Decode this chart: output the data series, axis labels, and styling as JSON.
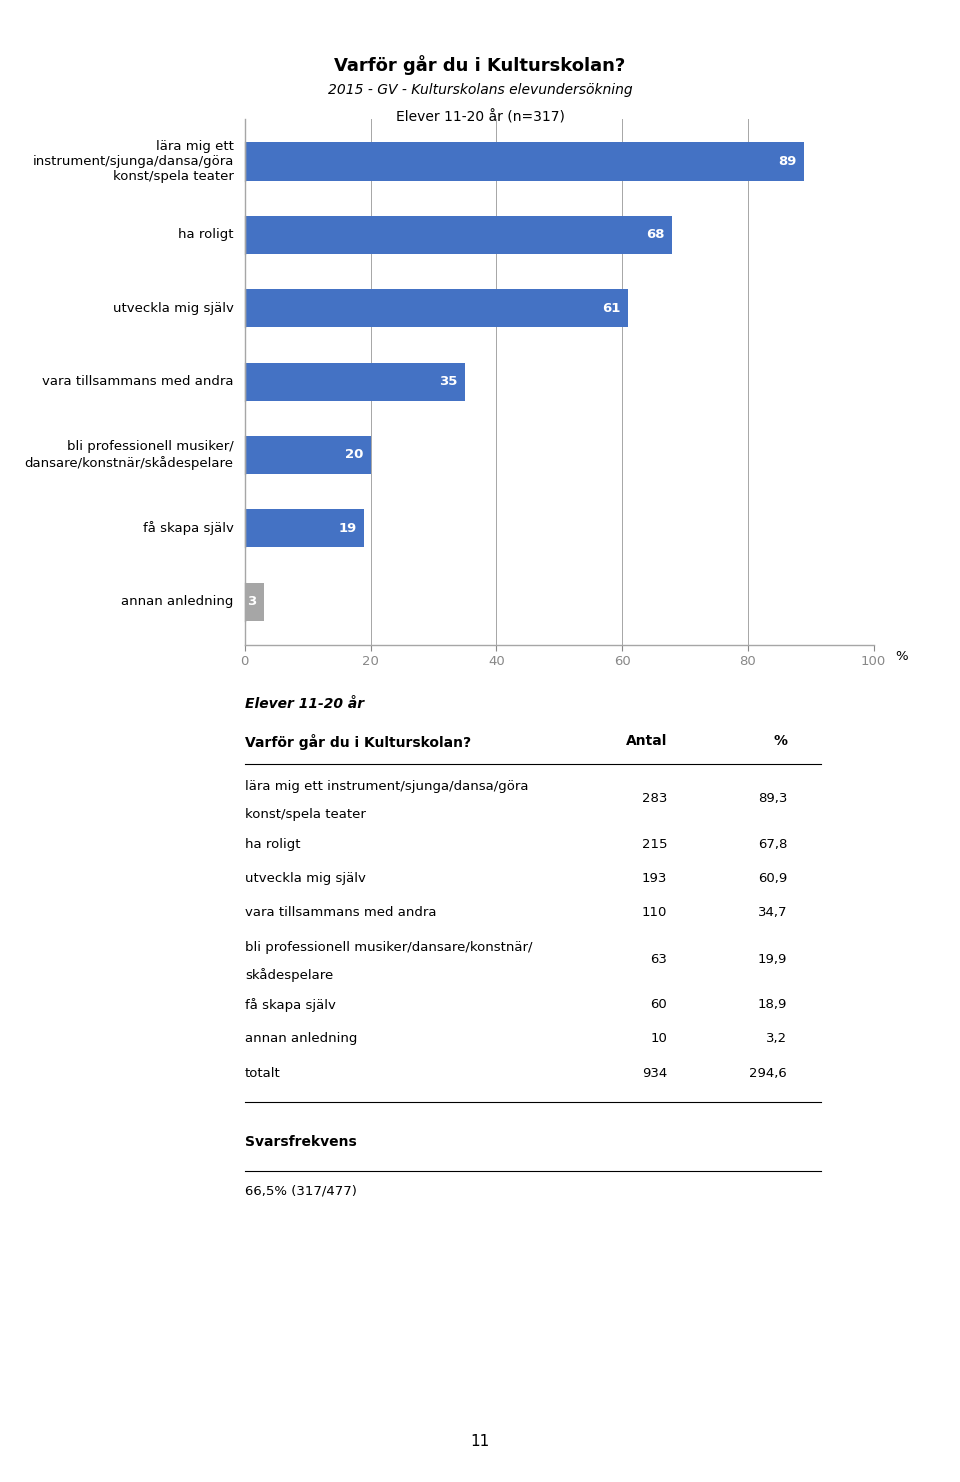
{
  "title": "Varför går du i Kulturskolan?",
  "subtitle1": "2015 - GV - Kulturskolans elevundersökning",
  "subtitle2": "Elever 11-20 år (n=317)",
  "categories": [
    "lära mig ett\ninstrument/sjunga/dansa/göra\nkonst/spela teater",
    "ha roligt",
    "utveckla mig själv",
    "vara tillsammans med andra",
    "bli professionell musiker/\ndansare/konstnär/skådespelare",
    "få skapa själv",
    "annan anledning"
  ],
  "values": [
    89,
    68,
    61,
    35,
    20,
    19,
    3
  ],
  "bar_colors": [
    "#4472C4",
    "#4472C4",
    "#4472C4",
    "#4472C4",
    "#4472C4",
    "#4472C4",
    "#A6A6A6"
  ],
  "xlim": [
    0,
    100
  ],
  "xticks": [
    0,
    20,
    40,
    60,
    80,
    100
  ],
  "xlabel_suffix": "%",
  "table_header_bold_italic": "Elever 11-20 år",
  "table_header_col1": "Varför går du i Kulturskolan?",
  "table_header_col2": "Antal",
  "table_header_col3": "%",
  "table_rows": [
    [
      "lära mig ett instrument/sjunga/dansa/göra\nkonst/spela teater",
      "283",
      "89,3"
    ],
    [
      "ha roligt",
      "215",
      "67,8"
    ],
    [
      "utveckla mig själv",
      "193",
      "60,9"
    ],
    [
      "vara tillsammans med andra",
      "110",
      "34,7"
    ],
    [
      "bli professionell musiker/dansare/konstnär/\nskådespelare",
      "63",
      "19,9"
    ],
    [
      "få skapa själv",
      "60",
      "18,9"
    ],
    [
      "annan anledning",
      "10",
      "3,2"
    ],
    [
      "totalt",
      "934",
      "294,6"
    ]
  ],
  "svarsfrekvens_label": "Svarsfrekvens",
  "svarsfrekvens_value": "66,5% (317/477)",
  "page_number": "11",
  "bg_color": "#FFFFFF",
  "text_color": "#000000",
  "bar_label_color": "#FFFFFF",
  "axis_color": "#A6A6A6",
  "title_fontsize": 13,
  "subtitle_fontsize": 10,
  "label_fontsize": 9.5,
  "bar_label_fontsize": 9.5,
  "tick_fontsize": 9.5,
  "table_fontsize": 10,
  "table_small_fontsize": 9.5
}
